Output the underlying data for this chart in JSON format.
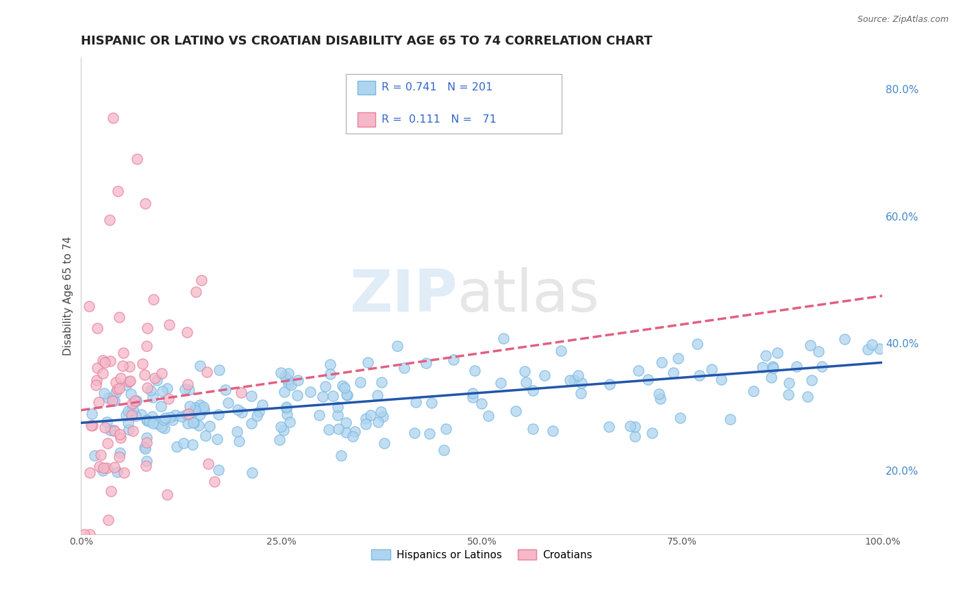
{
  "title": "HISPANIC OR LATINO VS CROATIAN DISABILITY AGE 65 TO 74 CORRELATION CHART",
  "source_text": "Source: ZipAtlas.com",
  "ylabel": "Disability Age 65 to 74",
  "xlim": [
    0,
    1.0
  ],
  "ylim": [
    0.1,
    0.85
  ],
  "xticks": [
    0.0,
    0.25,
    0.5,
    0.75,
    1.0
  ],
  "xticklabels": [
    "0.0%",
    "25.0%",
    "50.0%",
    "75.0%",
    "100.0%"
  ],
  "yticks_right": [
    0.2,
    0.4,
    0.6,
    0.8
  ],
  "yticklabels_right": [
    "20.0%",
    "40.0%",
    "60.0%",
    "80.0%"
  ],
  "blue_R": 0.741,
  "blue_N": 201,
  "pink_R": 0.111,
  "pink_N": 71,
  "blue_color": "#aed4f0",
  "pink_color": "#f5b8c8",
  "blue_edge": "#7ab8e0",
  "pink_edge": "#e87fa0",
  "blue_line_color": "#2255aa",
  "pink_line_color": "#e06080",
  "legend_blue_label": "Hispanics or Latinos",
  "legend_pink_label": "Croatians",
  "watermark_zip": "ZIP",
  "watermark_atlas": "atlas",
  "background_color": "#ffffff",
  "grid_color": "#bbbbbb",
  "title_fontsize": 13,
  "axis_label_fontsize": 11,
  "tick_fontsize": 10,
  "seed": 99,
  "blue_intercept": 0.275,
  "blue_slope": 0.095,
  "pink_intercept": 0.295,
  "pink_slope": 0.18
}
